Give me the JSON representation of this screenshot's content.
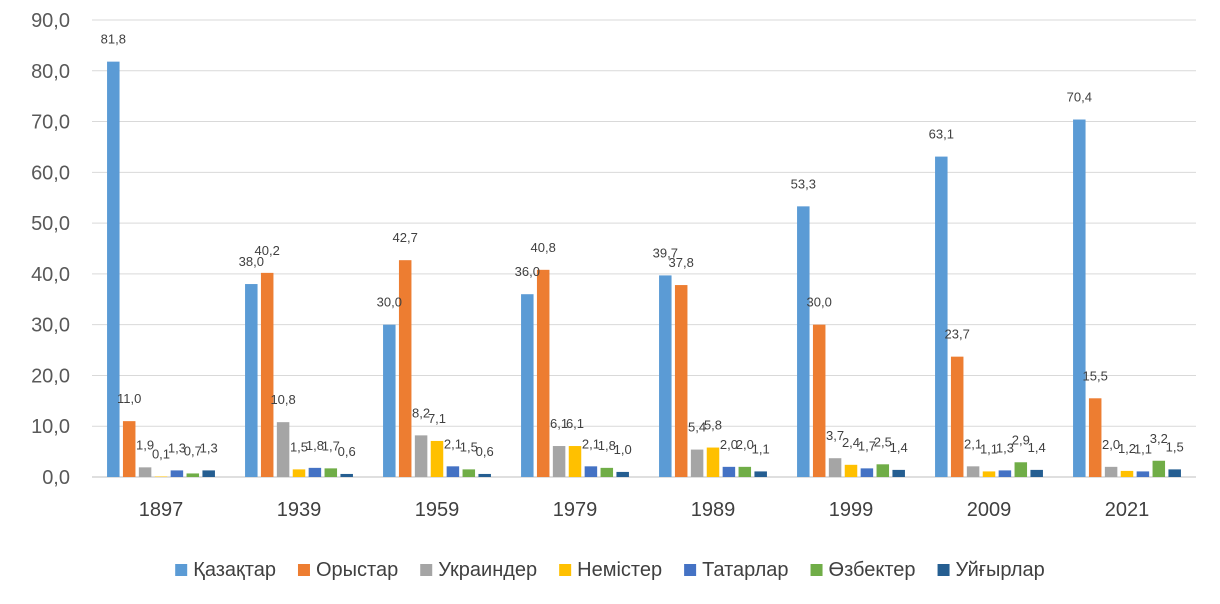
{
  "chart_data": {
    "type": "bar",
    "title": "",
    "xlabel": "",
    "ylabel": "",
    "ylim": [
      0,
      90
    ],
    "ytick_step": 10,
    "ytick_labels": [
      "0,0",
      "10,0",
      "20,0",
      "30,0",
      "40,0",
      "50,0",
      "60,0",
      "70,0",
      "80,0",
      "90,0"
    ],
    "grid": true,
    "legend_position": "bottom",
    "categories": [
      "1897",
      "1939",
      "1959",
      "1979",
      "1989",
      "1999",
      "2009",
      "2021"
    ],
    "series": [
      {
        "name": "Қазақтар",
        "color": "#5B9BD5",
        "values": [
          81.8,
          38.0,
          30.0,
          36.0,
          39.7,
          53.3,
          63.1,
          70.4
        ],
        "labels": [
          "81,8",
          "38,0",
          "30,0",
          "36,0",
          "39,7",
          "53,3",
          "63,1",
          "70,4"
        ]
      },
      {
        "name": "Орыстар",
        "color": "#ED7D31",
        "values": [
          11.0,
          40.2,
          42.7,
          40.8,
          37.8,
          30.0,
          23.7,
          15.5
        ],
        "labels": [
          "11,0",
          "40,2",
          "42,7",
          "40,8",
          "37,8",
          "30,0",
          "23,7",
          "15,5"
        ]
      },
      {
        "name": "Украиндер",
        "color": "#A5A5A5",
        "values": [
          1.9,
          10.8,
          8.2,
          6.1,
          5.4,
          3.7,
          2.1,
          2.0
        ],
        "labels": [
          "1,9",
          "10,8",
          "8,2",
          "6,1",
          "5,4",
          "3,7",
          "2,1",
          "2,0"
        ]
      },
      {
        "name": "Немістер",
        "color": "#FFC000",
        "values": [
          0.1,
          1.5,
          7.1,
          6.1,
          5.8,
          2.4,
          1.1,
          1.2
        ],
        "labels": [
          "0,1",
          "1,5",
          "7,1",
          "6,1",
          "5,8",
          "2,4",
          "1,1",
          "1,2"
        ]
      },
      {
        "name": "Татарлар",
        "color": "#4472C4",
        "values": [
          1.3,
          1.8,
          2.1,
          2.1,
          2.0,
          1.7,
          1.3,
          1.1
        ],
        "labels": [
          "1,3",
          "1,8",
          "2,1",
          "2,1",
          "2,0",
          "1,7",
          "1,3",
          "1,1"
        ]
      },
      {
        "name": "Өзбектер",
        "color": "#70AD47",
        "values": [
          0.7,
          1.7,
          1.5,
          1.8,
          2.0,
          2.5,
          2.9,
          3.2
        ],
        "labels": [
          "0,7",
          "1,7",
          "1,5",
          "1,8",
          "2,0",
          "2,5",
          "2,9",
          "3,2"
        ]
      },
      {
        "name": "Уйғырлар",
        "color": "#255E91",
        "values": [
          1.3,
          0.6,
          0.6,
          1.0,
          1.1,
          1.4,
          1.4,
          1.5
        ],
        "labels": [
          "1,3",
          "0,6",
          "0,6",
          "1,0",
          "1,1",
          "1,4",
          "1,4",
          "1,5"
        ]
      }
    ]
  }
}
